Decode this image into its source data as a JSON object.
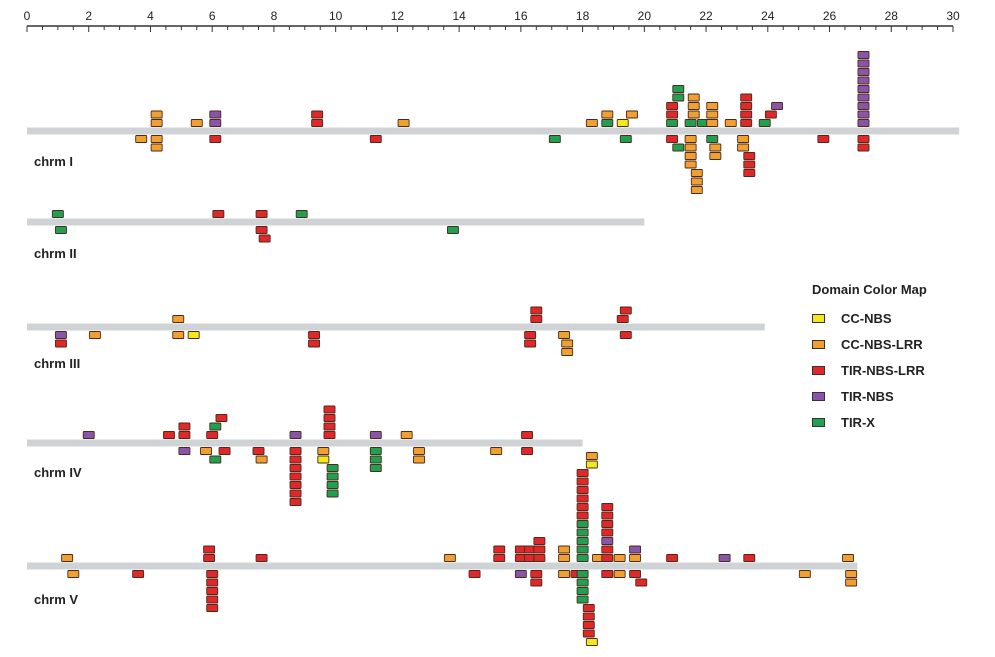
{
  "chart_data": {
    "type": "scatter",
    "xlim": [
      0,
      30
    ],
    "x_ticks": [
      "0",
      "2",
      "4",
      "6",
      "8",
      "10",
      "12",
      "14",
      "16",
      "18",
      "20",
      "22",
      "24",
      "26",
      "28",
      "30"
    ],
    "legend_title": "Domain Color Map",
    "legend": [
      {
        "name": "CC-NBS",
        "color": "#f3e81c"
      },
      {
        "name": "CC-NBS-LRR",
        "color": "#f0a030"
      },
      {
        "name": "TIR-NBS-LRR",
        "color": "#e0282a"
      },
      {
        "name": "TIR-NBS",
        "color": "#8a55a8"
      },
      {
        "name": "TIR-X",
        "color": "#20a050"
      }
    ],
    "chromosomes": [
      {
        "label": "chrm I",
        "length": 30.2,
        "genes": [
          {
            "x": 3.7,
            "s": -1,
            "n": 1,
            "t": "CC-NBS-LRR"
          },
          {
            "x": 4.2,
            "s": 1,
            "n": 2,
            "t": "CC-NBS-LRR"
          },
          {
            "x": 4.2,
            "s": -1,
            "n": 2,
            "t": "CC-NBS-LRR"
          },
          {
            "x": 5.5,
            "s": 1,
            "n": 1,
            "t": "CC-NBS-LRR"
          },
          {
            "x": 6.1,
            "s": 1,
            "n": 2,
            "t": "TIR-NBS"
          },
          {
            "x": 6.1,
            "s": -1,
            "n": 1,
            "t": "TIR-NBS-LRR"
          },
          {
            "x": 9.4,
            "s": 1,
            "n": 2,
            "t": "TIR-NBS-LRR"
          },
          {
            "x": 11.3,
            "s": -1,
            "n": 1,
            "t": "TIR-NBS-LRR"
          },
          {
            "x": 12.2,
            "s": 1,
            "n": 1,
            "t": "CC-NBS-LRR"
          },
          {
            "x": 17.1,
            "s": -1,
            "n": 1,
            "t": "TIR-X"
          },
          {
            "x": 18.3,
            "s": 1,
            "n": 1,
            "t": "CC-NBS-LRR"
          },
          {
            "x": 18.8,
            "s": 1,
            "n": 1,
            "t": "TIR-X"
          },
          {
            "x": 18.8,
            "s": 2,
            "n": 1,
            "t": "CC-NBS-LRR"
          },
          {
            "x": 19.3,
            "s": 1,
            "n": 1,
            "t": "CC-NBS"
          },
          {
            "x": 19.4,
            "s": -1,
            "n": 1,
            "t": "TIR-X"
          },
          {
            "x": 19.6,
            "s": 2,
            "n": 1,
            "t": "CC-NBS-LRR"
          },
          {
            "x": 20.9,
            "s": 1,
            "n": 1,
            "t": "TIR-X"
          },
          {
            "x": 20.9,
            "s": 2,
            "n": 2,
            "t": "TIR-NBS-LRR"
          },
          {
            "x": 20.9,
            "s": -1,
            "n": 1,
            "t": "TIR-NBS-LRR"
          },
          {
            "x": 21.1,
            "s": 4,
            "n": 2,
            "t": "TIR-X"
          },
          {
            "x": 21.1,
            "s": -2,
            "n": 1,
            "t": "TIR-X"
          },
          {
            "x": 21.5,
            "s": 1,
            "n": 1,
            "t": "TIR-X"
          },
          {
            "x": 21.5,
            "s": -1,
            "n": 4,
            "t": "CC-NBS-LRR"
          },
          {
            "x": 21.6,
            "s": 2,
            "n": 3,
            "t": "CC-NBS-LRR"
          },
          {
            "x": 21.7,
            "s": -5,
            "n": 3,
            "t": "CC-NBS-LRR"
          },
          {
            "x": 21.9,
            "s": 1,
            "n": 1,
            "t": "TIR-X"
          },
          {
            "x": 22.2,
            "s": 1,
            "n": 3,
            "t": "CC-NBS-LRR"
          },
          {
            "x": 22.2,
            "s": -1,
            "n": 1,
            "t": "TIR-X"
          },
          {
            "x": 22.3,
            "s": -2,
            "n": 2,
            "t": "CC-NBS-LRR"
          },
          {
            "x": 22.8,
            "s": 1,
            "n": 1,
            "t": "CC-NBS-LRR"
          },
          {
            "x": 23.2,
            "s": -1,
            "n": 2,
            "t": "CC-NBS-LRR"
          },
          {
            "x": 23.3,
            "s": 1,
            "n": 4,
            "t": "TIR-NBS-LRR"
          },
          {
            "x": 23.4,
            "s": -3,
            "n": 3,
            "t": "TIR-NBS-LRR"
          },
          {
            "x": 23.9,
            "s": 1,
            "n": 1,
            "t": "TIR-X"
          },
          {
            "x": 24.1,
            "s": 2,
            "n": 1,
            "t": "TIR-NBS-LRR"
          },
          {
            "x": 24.3,
            "s": 3,
            "n": 1,
            "t": "TIR-NBS"
          },
          {
            "x": 25.8,
            "s": -1,
            "n": 1,
            "t": "TIR-NBS-LRR"
          },
          {
            "x": 27.1,
            "s": 1,
            "n": 9,
            "t": "TIR-NBS"
          },
          {
            "x": 27.1,
            "s": -1,
            "n": 2,
            "t": "TIR-NBS-LRR"
          }
        ]
      },
      {
        "label": "chrm II",
        "length": 20.0,
        "genes": [
          {
            "x": 1.0,
            "s": 1,
            "n": 1,
            "t": "TIR-X"
          },
          {
            "x": 1.1,
            "s": -1,
            "n": 1,
            "t": "TIR-X"
          },
          {
            "x": 6.2,
            "s": 1,
            "n": 1,
            "t": "TIR-NBS-LRR"
          },
          {
            "x": 7.6,
            "s": 1,
            "n": 1,
            "t": "TIR-NBS-LRR"
          },
          {
            "x": 7.6,
            "s": -1,
            "n": 1,
            "t": "TIR-NBS-LRR"
          },
          {
            "x": 7.7,
            "s": -2,
            "n": 1,
            "t": "TIR-NBS-LRR"
          },
          {
            "x": 8.9,
            "s": 1,
            "n": 1,
            "t": "TIR-X"
          },
          {
            "x": 13.8,
            "s": -1,
            "n": 1,
            "t": "TIR-X"
          }
        ]
      },
      {
        "label": "chrm III",
        "length": 23.9,
        "genes": [
          {
            "x": 1.1,
            "s": -1,
            "n": 1,
            "t": "TIR-NBS"
          },
          {
            "x": 1.1,
            "s": -2,
            "n": 1,
            "t": "TIR-NBS-LRR"
          },
          {
            "x": 2.2,
            "s": -1,
            "n": 1,
            "t": "CC-NBS-LRR"
          },
          {
            "x": 4.9,
            "s": 1,
            "n": 1,
            "t": "CC-NBS-LRR"
          },
          {
            "x": 4.9,
            "s": -1,
            "n": 1,
            "t": "CC-NBS-LRR"
          },
          {
            "x": 5.4,
            "s": -1,
            "n": 1,
            "t": "CC-NBS"
          },
          {
            "x": 9.3,
            "s": -1,
            "n": 2,
            "t": "TIR-NBS-LRR"
          },
          {
            "x": 16.5,
            "s": 1,
            "n": 2,
            "t": "TIR-NBS-LRR"
          },
          {
            "x": 16.3,
            "s": -1,
            "n": 2,
            "t": "TIR-NBS-LRR"
          },
          {
            "x": 17.4,
            "s": -1,
            "n": 1,
            "t": "CC-NBS-LRR"
          },
          {
            "x": 17.5,
            "s": -2,
            "n": 2,
            "t": "CC-NBS-LRR"
          },
          {
            "x": 19.3,
            "s": 1,
            "n": 1,
            "t": "TIR-NBS-LRR"
          },
          {
            "x": 19.4,
            "s": 2,
            "n": 1,
            "t": "TIR-NBS-LRR"
          },
          {
            "x": 19.4,
            "s": -1,
            "n": 1,
            "t": "TIR-NBS-LRR"
          }
        ]
      },
      {
        "label": "chrm IV",
        "length": 18.0,
        "genes": [
          {
            "x": 2.0,
            "s": 1,
            "n": 1,
            "t": "TIR-NBS"
          },
          {
            "x": 4.6,
            "s": 1,
            "n": 1,
            "t": "TIR-NBS-LRR"
          },
          {
            "x": 5.1,
            "s": 1,
            "n": 2,
            "t": "TIR-NBS-LRR"
          },
          {
            "x": 5.1,
            "s": -1,
            "n": 1,
            "t": "TIR-NBS"
          },
          {
            "x": 5.8,
            "s": -1,
            "n": 1,
            "t": "CC-NBS-LRR"
          },
          {
            "x": 6.0,
            "s": 1,
            "n": 1,
            "t": "TIR-NBS-LRR"
          },
          {
            "x": 6.1,
            "s": 2,
            "n": 1,
            "t": "TIR-X"
          },
          {
            "x": 6.3,
            "s": 3,
            "n": 1,
            "t": "TIR-NBS-LRR"
          },
          {
            "x": 6.1,
            "s": -2,
            "n": 1,
            "t": "TIR-X"
          },
          {
            "x": 6.4,
            "s": -1,
            "n": 1,
            "t": "TIR-NBS-LRR"
          },
          {
            "x": 7.5,
            "s": -1,
            "n": 1,
            "t": "TIR-NBS-LRR"
          },
          {
            "x": 7.6,
            "s": -2,
            "n": 1,
            "t": "CC-NBS-LRR"
          },
          {
            "x": 8.7,
            "s": 1,
            "n": 1,
            "t": "TIR-NBS"
          },
          {
            "x": 8.7,
            "s": -1,
            "n": 7,
            "t": "TIR-NBS-LRR"
          },
          {
            "x": 9.6,
            "s": -1,
            "n": 1,
            "t": "CC-NBS-LRR"
          },
          {
            "x": 9.6,
            "s": -2,
            "n": 1,
            "t": "CC-NBS"
          },
          {
            "x": 9.8,
            "s": 1,
            "n": 4,
            "t": "TIR-NBS-LRR"
          },
          {
            "x": 9.9,
            "s": -3,
            "n": 4,
            "t": "TIR-X"
          },
          {
            "x": 11.3,
            "s": 1,
            "n": 1,
            "t": "TIR-NBS"
          },
          {
            "x": 11.3,
            "s": -1,
            "n": 3,
            "t": "TIR-X"
          },
          {
            "x": 12.3,
            "s": 1,
            "n": 1,
            "t": "CC-NBS-LRR"
          },
          {
            "x": 12.7,
            "s": -1,
            "n": 2,
            "t": "CC-NBS-LRR"
          },
          {
            "x": 15.2,
            "s": -1,
            "n": 1,
            "t": "CC-NBS-LRR"
          },
          {
            "x": 16.2,
            "s": 1,
            "n": 1,
            "t": "TIR-NBS-LRR"
          },
          {
            "x": 16.2,
            "s": -1,
            "n": 1,
            "t": "TIR-NBS-LRR"
          }
        ]
      },
      {
        "label": "chrm V",
        "length": 26.9,
        "genes": [
          {
            "x": 1.3,
            "s": 1,
            "n": 1,
            "t": "CC-NBS-LRR"
          },
          {
            "x": 1.5,
            "s": -1,
            "n": 1,
            "t": "CC-NBS-LRR"
          },
          {
            "x": 3.6,
            "s": -1,
            "n": 1,
            "t": "TIR-NBS-LRR"
          },
          {
            "x": 5.9,
            "s": 1,
            "n": 2,
            "t": "TIR-NBS-LRR"
          },
          {
            "x": 6.0,
            "s": -1,
            "n": 5,
            "t": "TIR-NBS-LRR"
          },
          {
            "x": 7.6,
            "s": 1,
            "n": 1,
            "t": "TIR-NBS-LRR"
          },
          {
            "x": 13.7,
            "s": 1,
            "n": 1,
            "t": "CC-NBS-LRR"
          },
          {
            "x": 14.5,
            "s": -1,
            "n": 1,
            "t": "TIR-NBS-LRR"
          },
          {
            "x": 15.3,
            "s": 1,
            "n": 2,
            "t": "TIR-NBS-LRR"
          },
          {
            "x": 16.0,
            "s": 1,
            "n": 2,
            "t": "TIR-NBS-LRR"
          },
          {
            "x": 16.0,
            "s": -1,
            "n": 1,
            "t": "TIR-NBS"
          },
          {
            "x": 16.3,
            "s": 1,
            "n": 2,
            "t": "TIR-NBS-LRR"
          },
          {
            "x": 16.6,
            "s": 1,
            "n": 3,
            "t": "TIR-NBS-LRR"
          },
          {
            "x": 16.5,
            "s": -1,
            "n": 2,
            "t": "TIR-NBS-LRR"
          },
          {
            "x": 17.4,
            "s": 1,
            "n": 2,
            "t": "CC-NBS-LRR"
          },
          {
            "x": 17.4,
            "s": -1,
            "n": 1,
            "t": "CC-NBS-LRR"
          },
          {
            "x": 17.8,
            "s": -1,
            "n": 1,
            "t": "TIR-NBS-LRR"
          },
          {
            "x": 18.0,
            "s": 1,
            "n": 5,
            "t": "TIR-X"
          },
          {
            "x": 18.0,
            "s": 6,
            "n": 6,
            "t": "TIR-NBS-LRR"
          },
          {
            "x": 18.0,
            "s": -1,
            "n": 4,
            "t": "TIR-X"
          },
          {
            "x": 18.2,
            "s": -5,
            "n": 4,
            "t": "TIR-NBS-LRR"
          },
          {
            "x": 18.3,
            "s": -9,
            "n": 1,
            "t": "CC-NBS"
          },
          {
            "x": 18.3,
            "s": 12,
            "n": 1,
            "t": "CC-NBS"
          },
          {
            "x": 18.3,
            "s": 13,
            "n": 1,
            "t": "CC-NBS-LRR"
          },
          {
            "x": 18.5,
            "s": 1,
            "n": 1,
            "t": "CC-NBS-LRR"
          },
          {
            "x": 18.8,
            "s": 1,
            "n": 2,
            "t": "TIR-NBS-LRR"
          },
          {
            "x": 18.8,
            "s": 3,
            "n": 1,
            "t": "TIR-NBS"
          },
          {
            "x": 18.8,
            "s": 4,
            "n": 4,
            "t": "TIR-NBS-LRR"
          },
          {
            "x": 18.8,
            "s": -1,
            "n": 1,
            "t": "TIR-NBS-LRR"
          },
          {
            "x": 19.2,
            "s": 1,
            "n": 1,
            "t": "CC-NBS-LRR"
          },
          {
            "x": 19.2,
            "s": -1,
            "n": 1,
            "t": "CC-NBS-LRR"
          },
          {
            "x": 19.7,
            "s": 1,
            "n": 1,
            "t": "CC-NBS-LRR"
          },
          {
            "x": 19.7,
            "s": 2,
            "n": 1,
            "t": "TIR-NBS"
          },
          {
            "x": 19.7,
            "s": -1,
            "n": 1,
            "t": "TIR-NBS-LRR"
          },
          {
            "x": 19.9,
            "s": -2,
            "n": 1,
            "t": "TIR-NBS-LRR"
          },
          {
            "x": 20.9,
            "s": 1,
            "n": 1,
            "t": "TIR-NBS-LRR"
          },
          {
            "x": 22.6,
            "s": 1,
            "n": 1,
            "t": "TIR-NBS"
          },
          {
            "x": 23.4,
            "s": 1,
            "n": 1,
            "t": "TIR-NBS-LRR"
          },
          {
            "x": 25.2,
            "s": -1,
            "n": 1,
            "t": "CC-NBS-LRR"
          },
          {
            "x": 26.6,
            "s": 1,
            "n": 1,
            "t": "CC-NBS-LRR"
          },
          {
            "x": 26.7,
            "s": -1,
            "n": 2,
            "t": "CC-NBS-LRR"
          }
        ]
      }
    ]
  }
}
